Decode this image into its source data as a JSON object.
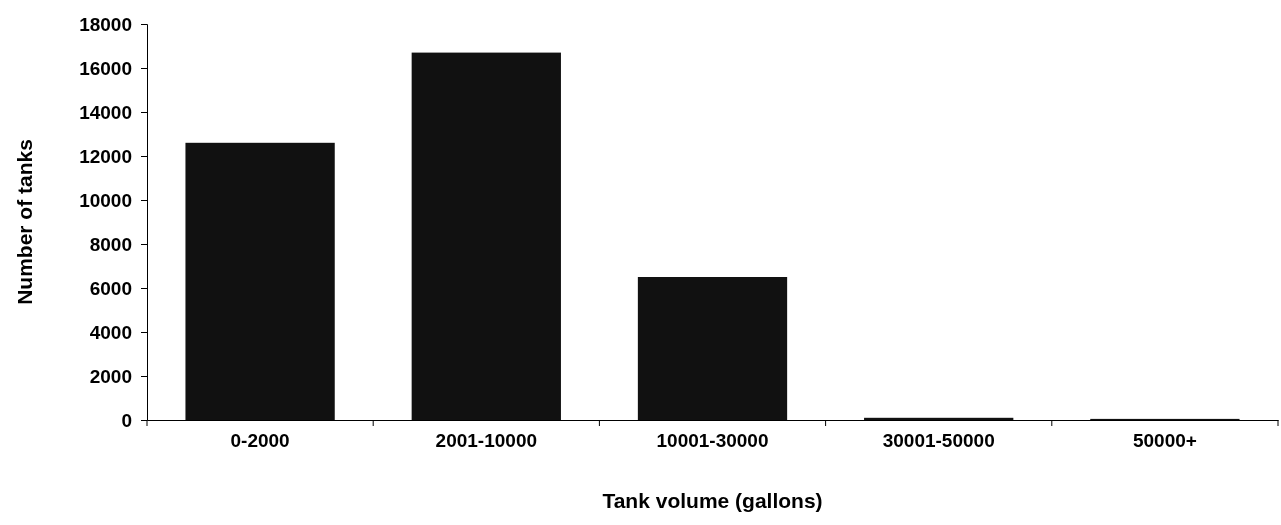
{
  "chart_data": {
    "type": "bar",
    "xlabel": "Tank volume (gallons)",
    "ylabel": "Number of tanks",
    "categories": [
      "0-2000",
      "2001-10000",
      "10001-30000",
      "30001-50000",
      "50000+"
    ],
    "values": [
      12600,
      16700,
      6500,
      100,
      50
    ],
    "color": "#111111",
    "ylim": [
      0,
      18000
    ],
    "yticks": [
      0,
      2000,
      4000,
      6000,
      8000,
      10000,
      12000,
      14000,
      16000,
      18000
    ],
    "grid": false
  }
}
